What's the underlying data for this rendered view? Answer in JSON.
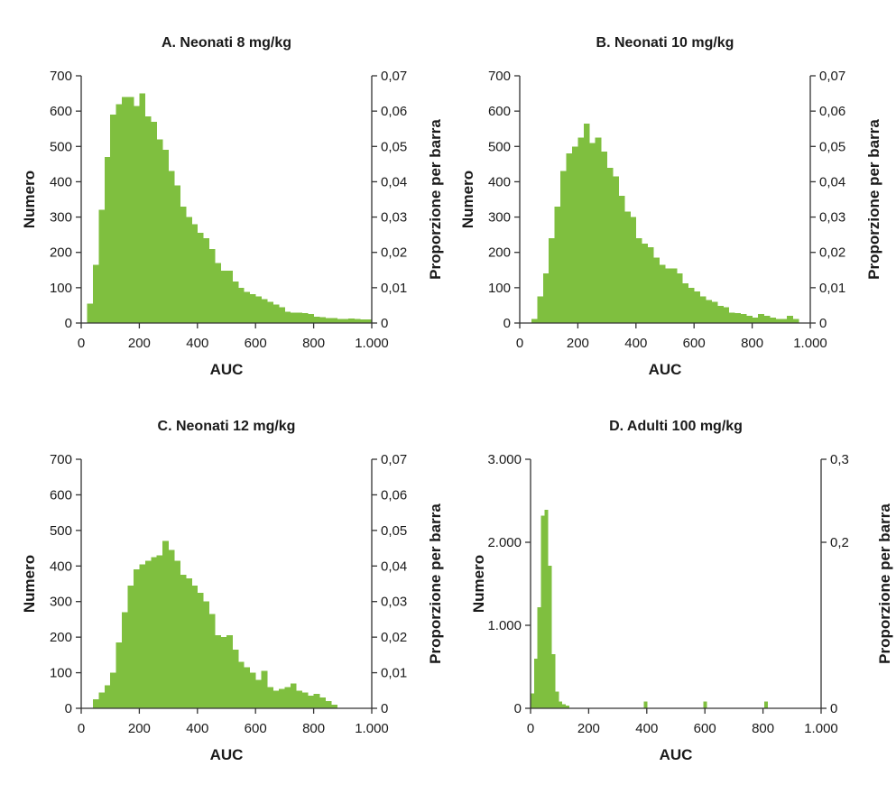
{
  "colors": {
    "bar": "#7fbf3f",
    "axis": "#333333",
    "text": "#1a1a1a"
  },
  "chart_data": [
    {
      "type": "bar",
      "title": "A. Neonati 8 mg/kg",
      "xlabel": "AUC",
      "ylabel": "Numero",
      "y2label": "Proporzione per barra",
      "xlim": [
        0,
        1000
      ],
      "ylim": [
        0,
        700
      ],
      "y2lim": [
        0,
        0.07
      ],
      "xticks": [
        {
          "v": 0,
          "label": "0"
        },
        {
          "v": 200,
          "label": "200"
        },
        {
          "v": 400,
          "label": "400"
        },
        {
          "v": 600,
          "label": "600"
        },
        {
          "v": 800,
          "label": "800"
        },
        {
          "v": 1000,
          "label": "1.000"
        }
      ],
      "yticks": [
        {
          "v": 0,
          "label": "0"
        },
        {
          "v": 100,
          "label": "100"
        },
        {
          "v": 200,
          "label": "200"
        },
        {
          "v": 300,
          "label": "300"
        },
        {
          "v": 400,
          "label": "400"
        },
        {
          "v": 500,
          "label": "500"
        },
        {
          "v": 600,
          "label": "600"
        },
        {
          "v": 700,
          "label": "700"
        }
      ],
      "y2ticks": [
        {
          "v": 0,
          "label": "0"
        },
        {
          "v": 0.01,
          "label": "0,01"
        },
        {
          "v": 0.02,
          "label": "0,02"
        },
        {
          "v": 0.03,
          "label": "0,03"
        },
        {
          "v": 0.04,
          "label": "0,04"
        },
        {
          "v": 0.05,
          "label": "0,05"
        },
        {
          "v": 0.06,
          "label": "0,06"
        },
        {
          "v": 0.07,
          "label": "0,07"
        }
      ],
      "bin_start": 20,
      "bin_width": 20,
      "values": [
        55,
        165,
        320,
        470,
        590,
        620,
        640,
        640,
        615,
        650,
        585,
        570,
        520,
        490,
        430,
        390,
        330,
        300,
        280,
        255,
        240,
        210,
        170,
        148,
        148,
        118,
        100,
        88,
        82,
        75,
        68,
        60,
        52,
        45,
        32,
        30,
        29,
        28,
        26,
        18,
        16,
        14,
        14,
        12,
        12,
        13,
        12,
        10,
        10
      ]
    },
    {
      "type": "bar",
      "title": "B. Neonati 10 mg/kg",
      "xlabel": "AUC",
      "ylabel": "Numero",
      "y2label": "Proporzione per barra",
      "xlim": [
        0,
        1000
      ],
      "ylim": [
        0,
        700
      ],
      "y2lim": [
        0,
        0.07
      ],
      "xticks": [
        {
          "v": 0,
          "label": "0"
        },
        {
          "v": 200,
          "label": "200"
        },
        {
          "v": 400,
          "label": "400"
        },
        {
          "v": 600,
          "label": "600"
        },
        {
          "v": 800,
          "label": "800"
        },
        {
          "v": 1000,
          "label": "1.000"
        }
      ],
      "yticks": [
        {
          "v": 0,
          "label": "0"
        },
        {
          "v": 100,
          "label": "100"
        },
        {
          "v": 200,
          "label": "200"
        },
        {
          "v": 300,
          "label": "300"
        },
        {
          "v": 400,
          "label": "400"
        },
        {
          "v": 500,
          "label": "500"
        },
        {
          "v": 600,
          "label": "600"
        },
        {
          "v": 700,
          "label": "700"
        }
      ],
      "y2ticks": [
        {
          "v": 0,
          "label": "0"
        },
        {
          "v": 0.01,
          "label": "0,01"
        },
        {
          "v": 0.02,
          "label": "0,02"
        },
        {
          "v": 0.03,
          "label": "0,03"
        },
        {
          "v": 0.04,
          "label": "0,04"
        },
        {
          "v": 0.05,
          "label": "0,05"
        },
        {
          "v": 0.06,
          "label": "0,06"
        },
        {
          "v": 0.07,
          "label": "0,07"
        }
      ],
      "bin_start": 40,
      "bin_width": 20,
      "values": [
        12,
        75,
        140,
        240,
        330,
        430,
        480,
        500,
        525,
        565,
        510,
        525,
        485,
        440,
        415,
        360,
        315,
        300,
        240,
        225,
        215,
        185,
        165,
        155,
        155,
        140,
        112,
        100,
        90,
        75,
        65,
        60,
        48,
        45,
        30,
        28,
        25,
        20,
        15,
        25,
        20,
        15,
        12,
        12,
        20,
        12
      ]
    },
    {
      "type": "bar",
      "title": "C. Neonati 12 mg/kg",
      "xlabel": "AUC",
      "ylabel": "Numero",
      "y2label": "Proporzione per barra",
      "xlim": [
        0,
        1000
      ],
      "ylim": [
        0,
        700
      ],
      "y2lim": [
        0,
        0.07
      ],
      "xticks": [
        {
          "v": 0,
          "label": "0"
        },
        {
          "v": 200,
          "label": "200"
        },
        {
          "v": 400,
          "label": "400"
        },
        {
          "v": 600,
          "label": "600"
        },
        {
          "v": 800,
          "label": "800"
        },
        {
          "v": 1000,
          "label": "1.000"
        }
      ],
      "yticks": [
        {
          "v": 0,
          "label": "0"
        },
        {
          "v": 100,
          "label": "100"
        },
        {
          "v": 200,
          "label": "200"
        },
        {
          "v": 300,
          "label": "300"
        },
        {
          "v": 400,
          "label": "400"
        },
        {
          "v": 500,
          "label": "500"
        },
        {
          "v": 600,
          "label": "600"
        },
        {
          "v": 700,
          "label": "700"
        }
      ],
      "y2ticks": [
        {
          "v": 0,
          "label": "0"
        },
        {
          "v": 0.01,
          "label": "0,01"
        },
        {
          "v": 0.02,
          "label": "0,02"
        },
        {
          "v": 0.03,
          "label": "0,03"
        },
        {
          "v": 0.04,
          "label": "0,04"
        },
        {
          "v": 0.05,
          "label": "0,05"
        },
        {
          "v": 0.06,
          "label": "0,06"
        },
        {
          "v": 0.07,
          "label": "0,07"
        }
      ],
      "bin_start": 40,
      "bin_width": 20,
      "values": [
        25,
        45,
        65,
        100,
        185,
        270,
        345,
        390,
        405,
        415,
        425,
        430,
        470,
        445,
        415,
        375,
        365,
        345,
        325,
        300,
        265,
        205,
        200,
        205,
        165,
        130,
        115,
        100,
        80,
        105,
        60,
        50,
        55,
        60,
        70,
        50,
        45,
        35,
        40,
        30,
        20,
        10
      ]
    },
    {
      "type": "bar",
      "title": "D. Adulti 100 mg/kg",
      "xlabel": "AUC",
      "ylabel": "Numero",
      "y2label": "Proporzione per barra",
      "xlim": [
        0,
        1000
      ],
      "ylim": [
        0,
        3000
      ],
      "y2lim": [
        0,
        0.3
      ],
      "xticks": [
        {
          "v": 0,
          "label": "0"
        },
        {
          "v": 200,
          "label": "200"
        },
        {
          "v": 400,
          "label": "400"
        },
        {
          "v": 600,
          "label": "600"
        },
        {
          "v": 800,
          "label": "800"
        },
        {
          "v": 1000,
          "label": "1.000"
        }
      ],
      "yticks": [
        {
          "v": 0,
          "label": "0"
        },
        {
          "v": 1000,
          "label": "1.000"
        },
        {
          "v": 2000,
          "label": "2.000"
        },
        {
          "v": 3000,
          "label": "3.000"
        }
      ],
      "y2ticks": [
        {
          "v": 0,
          "label": "0"
        },
        {
          "v": 0.2,
          "label": "0,2"
        },
        {
          "v": 0.3,
          "label": "0,3"
        }
      ],
      "bin_start": 0,
      "bin_width": 12,
      "values": [
        180,
        600,
        1220,
        2320,
        2390,
        1720,
        650,
        200,
        80,
        50,
        30
      ],
      "outliers": [
        {
          "x": 390,
          "value": 80
        },
        {
          "x": 595,
          "value": 80
        },
        {
          "x": 805,
          "value": 80
        }
      ]
    }
  ]
}
